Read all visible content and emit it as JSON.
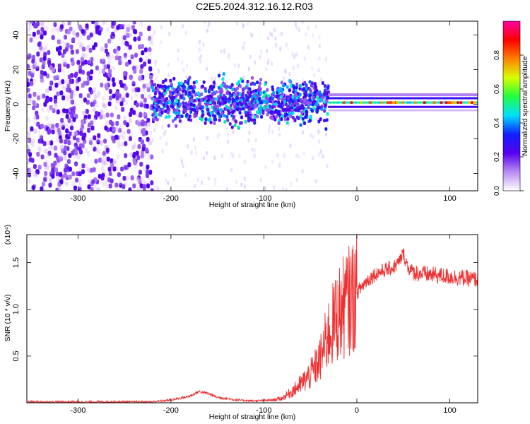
{
  "title": "C2E5.2024.312.16.12.R03",
  "colors": {
    "background": "#ffffff",
    "snr_line": "#ee3030",
    "axis": "#000000"
  },
  "chart_data": [
    {
      "type": "heatmap",
      "name": "spectrogram",
      "xlabel": "Height of straight line (km)",
      "ylabel": "Frequency (Hz)",
      "xlim": [
        -355,
        130
      ],
      "ylim": [
        -50,
        48
      ],
      "xticks": [
        -300,
        -200,
        -100,
        0,
        100
      ],
      "xtick_labels": [
        "-300",
        "-200",
        "-100",
        "0",
        "100"
      ],
      "yticks": [
        -40,
        -20,
        0,
        20,
        40
      ],
      "ytick_labels": [
        "-40",
        "-20",
        "0",
        "20",
        "40"
      ],
      "colorbar": {
        "label": "Normalized spectral amplitude",
        "range": [
          0,
          1
        ],
        "ticks": [
          0.0,
          0.2,
          0.4,
          0.6,
          0.8
        ],
        "tick_labels": [
          "0.0",
          "0.2",
          "0.4",
          "0.6",
          "0.8"
        ],
        "stops": [
          "#ffffff",
          "#b98cf2",
          "#5500ee",
          "#1020ff",
          "#00e0ff",
          "#20ff40",
          "#d8ff00",
          "#ff8000",
          "#ff0000",
          "#ff00a0"
        ]
      },
      "regions": [
        {
          "x_range": [
            -355,
            -220
          ],
          "freq_range": [
            -50,
            48
          ],
          "description": "broadband noise",
          "amplitude": [
            0.1,
            0.25
          ]
        },
        {
          "x_range": [
            -220,
            -30
          ],
          "freq_range": [
            -12,
            15
          ],
          "description": "signal cluster",
          "amplitude": [
            0.15,
            0.5
          ]
        },
        {
          "x_range": [
            -30,
            130
          ],
          "freq_range": [
            -2,
            4
          ],
          "description": "narrow carrier band",
          "amplitude": [
            0.4,
            0.95
          ]
        }
      ]
    },
    {
      "type": "line",
      "name": "snr",
      "xlabel": "Height of straight line (km)",
      "ylabel": "SNR (10 * v/v)",
      "scale_label": "(x10⁴)",
      "xlim": [
        -355,
        130
      ],
      "ylim": [
        0,
        1.8
      ],
      "xticks": [
        -300,
        -200,
        -100,
        0,
        100
      ],
      "xtick_labels": [
        "-300",
        "-200",
        "-100",
        "0",
        "100"
      ],
      "yticks": [
        0.5,
        1.0,
        1.5
      ],
      "ytick_labels": [
        "0.5",
        "1.0",
        "1.5"
      ],
      "series": [
        {
          "x": [
            -355,
            -300,
            -250,
            -220,
            -200,
            -180,
            -170,
            -160,
            -150,
            -130,
            -110,
            -90,
            -80,
            -70,
            -60,
            -50,
            -40,
            -30,
            -20,
            -10,
            0,
            10,
            20,
            30,
            40,
            45,
            50,
            55,
            60,
            70,
            80,
            90,
            100,
            110,
            120,
            130
          ],
          "y": [
            0.01,
            0.01,
            0.01,
            0.01,
            0.03,
            0.07,
            0.12,
            0.1,
            0.06,
            0.03,
            0.02,
            0.03,
            0.05,
            0.12,
            0.2,
            0.3,
            0.45,
            0.75,
            0.95,
            1.08,
            1.18,
            1.3,
            1.38,
            1.42,
            1.45,
            1.5,
            1.6,
            1.45,
            1.4,
            1.38,
            1.37,
            1.36,
            1.35,
            1.34,
            1.33,
            1.32
          ]
        }
      ]
    }
  ]
}
